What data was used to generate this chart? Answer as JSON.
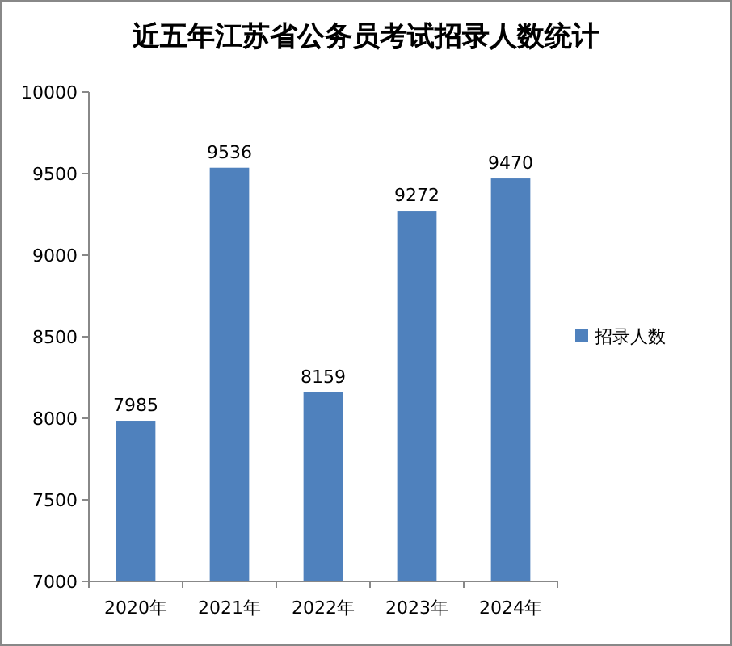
{
  "chart_data": {
    "type": "bar",
    "title": "近五年江苏省公务员考试招录人数统计",
    "categories": [
      "2020年",
      "2021年",
      "2022年",
      "2023年",
      "2024年"
    ],
    "series": [
      {
        "name": "招录人数",
        "color": "#4f81bd",
        "values": [
          7985,
          9536,
          8159,
          9272,
          9470
        ]
      }
    ],
    "ylim": [
      7000,
      10000
    ],
    "yticks": [
      7000,
      7500,
      8000,
      8500,
      9000,
      9500,
      10000
    ],
    "data_labels": true,
    "legend": "right"
  }
}
